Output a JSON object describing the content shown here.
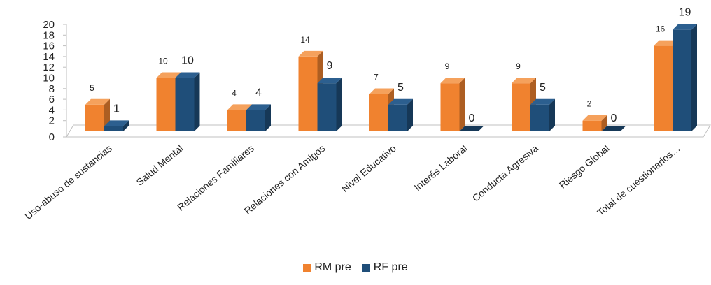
{
  "chart_data": {
    "type": "bar",
    "categories": [
      "Uso-abuso de sustancias",
      "Salud Mental",
      "Relaciones Familiares",
      "Relaciones con Amigos",
      "Nivel Educativo",
      "Interés Laboral",
      "Conducta Agresiva",
      "Riesgo Global",
      "Total de cuestionarios…"
    ],
    "series": [
      {
        "name": "RM pre",
        "values": [
          5,
          10,
          4,
          14,
          7,
          9,
          9,
          2,
          16
        ],
        "color": "#F0822F"
      },
      {
        "name": "RF pre",
        "values": [
          1,
          10,
          4,
          9,
          5,
          0,
          5,
          0,
          19
        ],
        "color": "#1F4E79"
      }
    ],
    "ylim": [
      0,
      20
    ],
    "yticks": [
      "0",
      "2",
      "4",
      "6",
      "8",
      "10",
      "12",
      "14",
      "16",
      "18",
      "20"
    ],
    "legend_position": "bottom",
    "grid": false,
    "style": "3d-clustered-column"
  }
}
